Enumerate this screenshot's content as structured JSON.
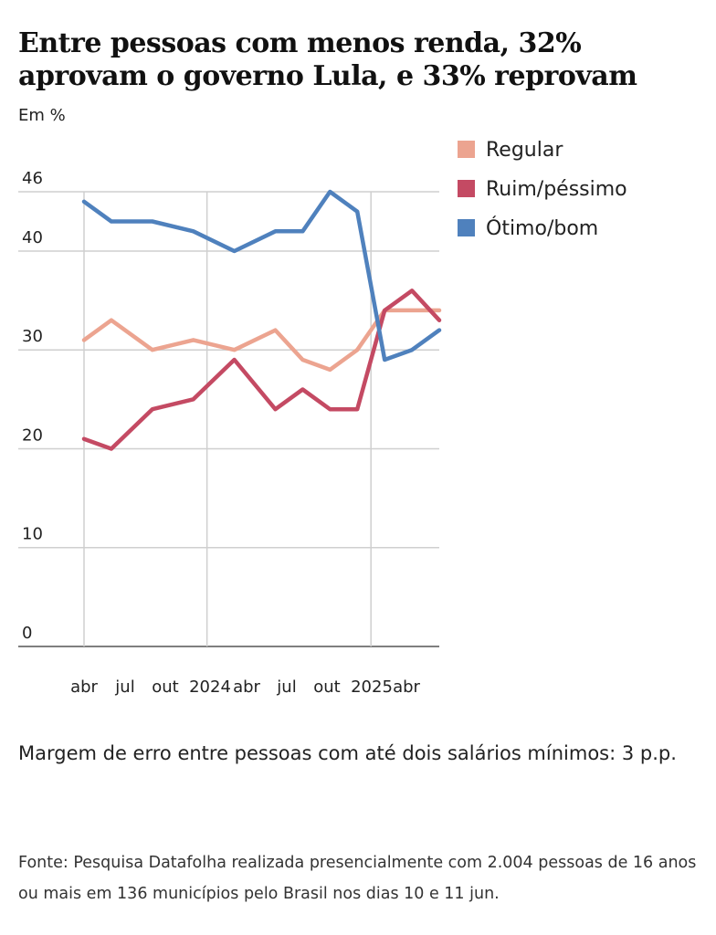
{
  "title": "Entre pessoas com menos renda, 32% aprovam o governo Lula, e 33% reprovam",
  "unit": "Em %",
  "note": "Margem de erro entre pessoas com até dois salários mínimos: 3 p.p.",
  "source": "Fonte: Pesquisa Datafolha realizada presencialmente com 2.004 pessoas de 16 anos ou mais em 136 municípios pelo Brasil nos dias 10 e 11 jun.",
  "chart_data": {
    "type": "line",
    "ylim": [
      0,
      46
    ],
    "y_ticks": [
      0,
      10,
      20,
      30,
      40,
      46
    ],
    "x_labels": [
      "abr",
      "jul",
      "out",
      "2024",
      "abr",
      "jul",
      "out",
      "2025",
      "abr"
    ],
    "survey_dates": [
      "2023-04",
      "2023-06",
      "2023-09",
      "2023-12",
      "2024-03",
      "2024-06",
      "2024-08",
      "2024-10",
      "2024-12",
      "2025-02",
      "2025-04",
      "2025-06"
    ],
    "grid": true,
    "legend": "top-right",
    "series": [
      {
        "name": "Regular",
        "color": "#eca490",
        "values": [
          31,
          33,
          30,
          31,
          30,
          32,
          29,
          28,
          30,
          34,
          34,
          34
        ]
      },
      {
        "name": "Ruim/péssimo",
        "color": "#c44a63",
        "values": [
          21,
          20,
          24,
          25,
          29,
          24,
          26,
          24,
          24,
          34,
          36,
          33
        ]
      },
      {
        "name": "Ótimo/bom",
        "color": "#4f81bd",
        "values": [
          45,
          43,
          43,
          42,
          40,
          42,
          42,
          46,
          44,
          29,
          30,
          32
        ]
      }
    ]
  }
}
